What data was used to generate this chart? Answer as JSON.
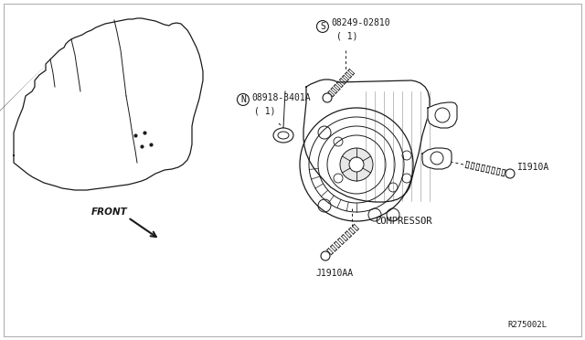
{
  "bg_color": "#ffffff",
  "line_color": "#1a1a1a",
  "fig_width": 6.4,
  "fig_height": 3.72,
  "dpi": 100,
  "labels": {
    "part1_id": "08249-02810",
    "part1_sub": "( 1)",
    "part2_id": "08918-3401A",
    "part2_sub": "( 1)",
    "part3_id": "I1910A",
    "part4_id": "J1910AA",
    "compressor": "COMPRESSOR",
    "front": "FRONT",
    "ref": "R275002L"
  }
}
